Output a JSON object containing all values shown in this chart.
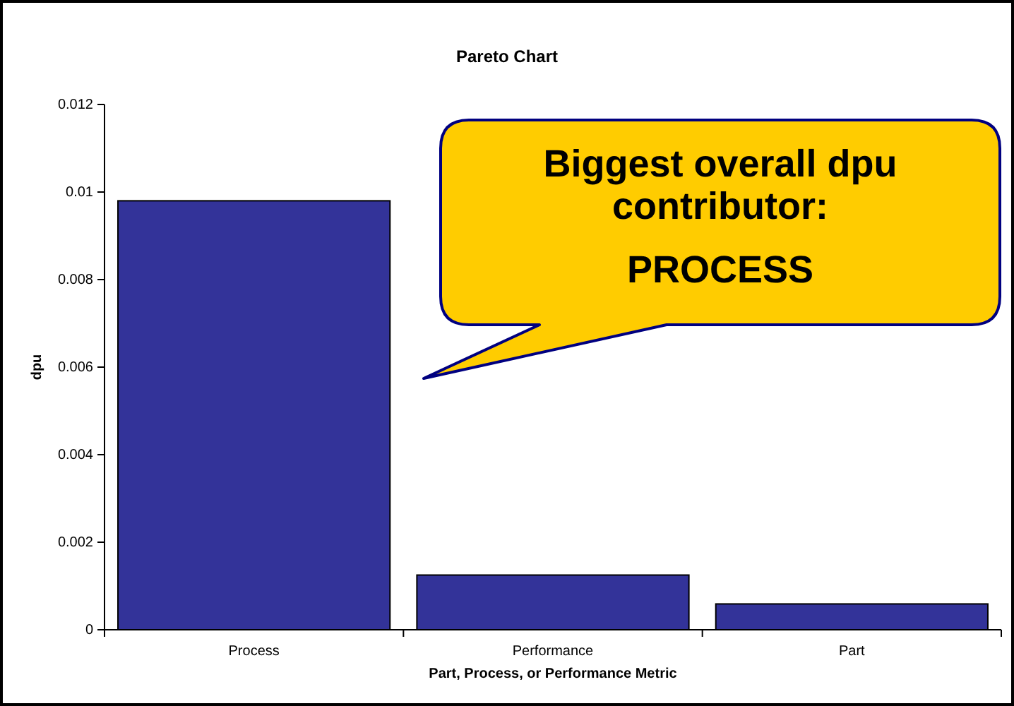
{
  "chart_data": {
    "type": "bar",
    "title": "Pareto Chart",
    "xlabel": "Part, Process, or Performance Metric",
    "ylabel": "dpu",
    "categories": [
      "Process",
      "Performance",
      "Part"
    ],
    "values": [
      0.0098,
      0.00125,
      0.00059
    ],
    "color": "#333399",
    "ylim": [
      0,
      0.012
    ],
    "yticks": [
      0,
      0.002,
      0.004,
      0.006,
      0.008,
      0.01,
      0.012
    ],
    "grid": false,
    "annotations": [
      "Biggest overall dpu contributor:",
      "PROCESS"
    ]
  }
}
